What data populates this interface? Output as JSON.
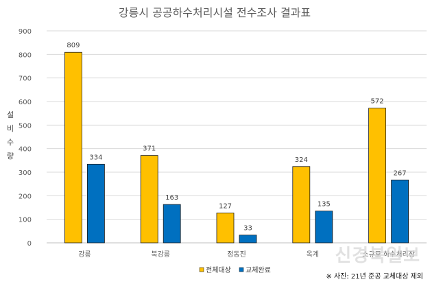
{
  "chart_data": {
    "type": "bar",
    "title": "강릉시 공공하수처리시설 전수조사 결과표",
    "ylabel": "설비수량",
    "xlabel": "",
    "categories": [
      "강릉",
      "북강릉",
      "정동진",
      "옥계",
      "소규모 하수처리장"
    ],
    "series": [
      {
        "name": "전체대상",
        "values": [
          809,
          371,
          127,
          324,
          572
        ],
        "color": "#FFC000"
      },
      {
        "name": "교체완료",
        "values": [
          334,
          163,
          33,
          135,
          267
        ],
        "color": "#0070C0"
      }
    ],
    "ylim": [
      0,
      900
    ],
    "yticks": [
      0,
      100,
      200,
      300,
      400,
      500,
      600,
      700,
      800,
      900
    ],
    "grid": true,
    "legend_position": "bottom"
  },
  "watermark": "신경북일보",
  "footnote": "※ 사진: 21년 준공 교체대상 제외"
}
